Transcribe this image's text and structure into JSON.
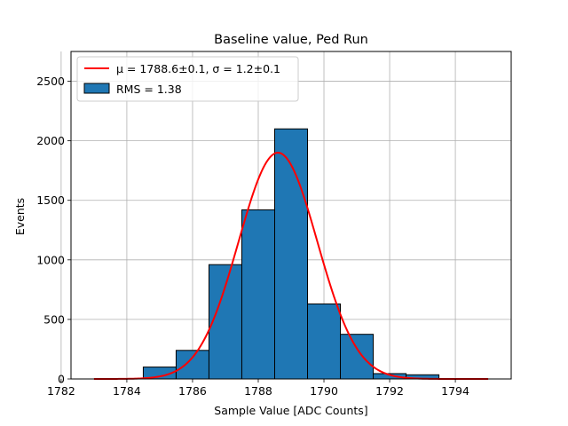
{
  "chart_data": {
    "type": "bar",
    "title": "Baseline value, Ped Run",
    "xlabel": "Sample Value [ADC Counts]",
    "ylabel": "Events",
    "xlim": [
      1782.3,
      1795.7
    ],
    "ylim": [
      0,
      2750
    ],
    "x_ticks": [
      1782,
      1784,
      1786,
      1788,
      1790,
      1792,
      1794
    ],
    "y_ticks": [
      0,
      500,
      1000,
      1500,
      2000,
      2500
    ],
    "grid": true,
    "legend_position": "top-left",
    "bin_edges": [
      1784.5,
      1785.5,
      1786.5,
      1787.5,
      1788.5,
      1789.5,
      1790.5,
      1791.5,
      1792.5,
      1793.5
    ],
    "series": [
      {
        "name": "RMS = 1.38",
        "kind": "histogram",
        "color": "#1f77b4",
        "values": [
          100,
          240,
          960,
          1420,
          2100,
          630,
          375,
          45,
          35
        ]
      },
      {
        "name": "μ = 1788.6±0.1, σ = 1.2±0.1",
        "kind": "gaussian-fit",
        "color": "#ff0000",
        "amplitude": 1900,
        "mu": 1788.6,
        "sigma": 1.2,
        "x_range": [
          1783,
          1795
        ]
      }
    ]
  }
}
